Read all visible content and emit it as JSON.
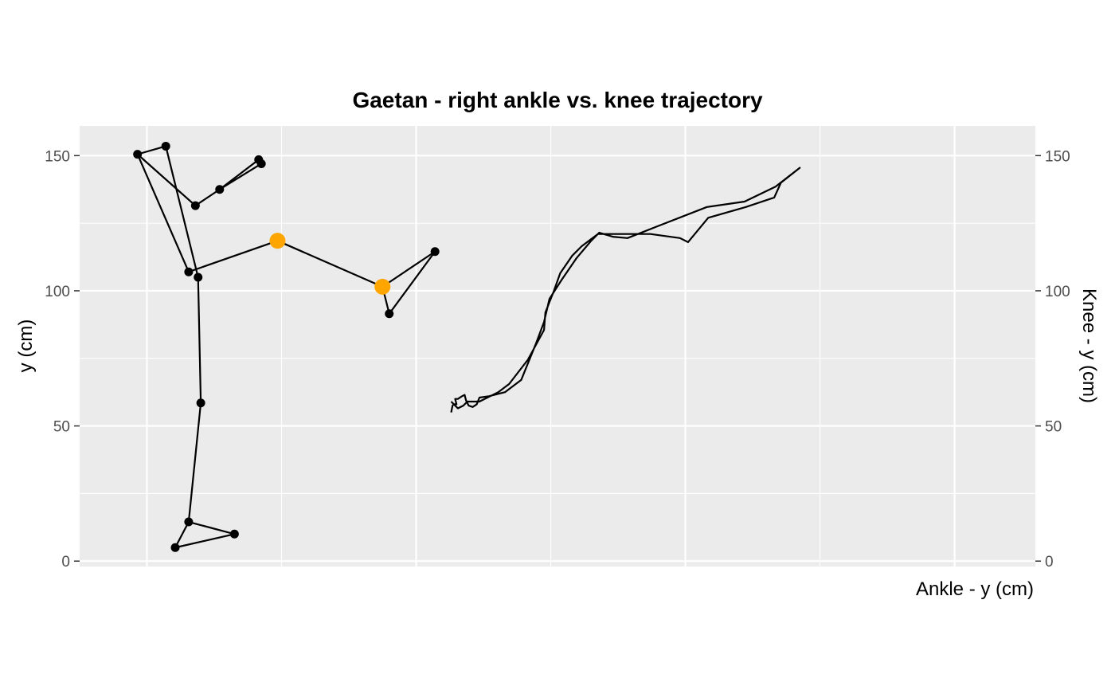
{
  "chart_data": {
    "type": "line",
    "title": "Gaetan - right ankle vs. knee trajectory",
    "ylabel": "y (cm)",
    "xlabel_right": "Ankle - y (cm)",
    "ylabel_right": "Knee - y (cm)",
    "ylim": [
      -2,
      161
    ],
    "xlim": [
      -0.25,
      3.3
    ],
    "yticks": [
      0,
      50,
      100,
      150
    ],
    "yticks_right": [
      0,
      50,
      100,
      150
    ],
    "x_gridlines": [
      0,
      0.5,
      1,
      1.5,
      2,
      2.5,
      3
    ],
    "grid": true,
    "colors": {
      "panel": "#ebebeb",
      "grid": "#ffffff",
      "line": "#000000",
      "highlight": "#ffa500"
    },
    "skeleton": {
      "segments": [
        [
          [
            -0.035,
            150.5
          ],
          [
            0.07,
            153.5
          ]
        ],
        [
          [
            -0.035,
            150.5
          ],
          [
            0.18,
            131.5
          ]
        ],
        [
          [
            -0.035,
            150.5
          ],
          [
            0.155,
            107
          ]
        ],
        [
          [
            0.07,
            153.5
          ],
          [
            0.19,
            105
          ]
        ],
        [
          [
            0.18,
            131.5
          ],
          [
            0.27,
            137.5
          ]
        ],
        [
          [
            0.27,
            137.5
          ],
          [
            0.415,
            148.5
          ]
        ],
        [
          [
            0.27,
            137.5
          ],
          [
            0.425,
            147
          ]
        ],
        [
          [
            0.155,
            107
          ],
          [
            0.485,
            118.5
          ]
        ],
        [
          [
            0.485,
            118.5
          ],
          [
            0.875,
            101.5
          ]
        ],
        [
          [
            0.875,
            101.5
          ],
          [
            1.07,
            114.5
          ]
        ],
        [
          [
            0.875,
            101.5
          ],
          [
            0.9,
            91.5
          ]
        ],
        [
          [
            1.07,
            114.5
          ],
          [
            0.9,
            91.5
          ]
        ],
        [
          [
            0.19,
            105
          ],
          [
            0.2,
            58.5
          ]
        ],
        [
          [
            0.2,
            58.5
          ],
          [
            0.155,
            14.5
          ]
        ],
        [
          [
            0.155,
            14.5
          ],
          [
            0.105,
            5
          ]
        ],
        [
          [
            0.155,
            14.5
          ],
          [
            0.325,
            10
          ]
        ],
        [
          [
            0.105,
            5
          ],
          [
            0.325,
            10
          ]
        ]
      ],
      "joints": [
        [
          -0.035,
          150.5
        ],
        [
          0.07,
          153.5
        ],
        [
          0.18,
          131.5
        ],
        [
          0.27,
          137.5
        ],
        [
          0.415,
          148.5
        ],
        [
          0.425,
          147
        ],
        [
          0.155,
          107
        ],
        [
          0.19,
          105
        ],
        [
          0.2,
          58.5
        ],
        [
          0.155,
          14.5
        ],
        [
          0.105,
          5
        ],
        [
          0.325,
          10
        ],
        [
          1.07,
          114.5
        ],
        [
          0.9,
          91.5
        ]
      ],
      "highlight_joints": [
        [
          0.485,
          118.5
        ],
        [
          0.875,
          101.5
        ]
      ]
    },
    "trajectory": {
      "name": "ankle vs knee",
      "points": [
        [
          1.13,
          55
        ],
        [
          1.135,
          57.5
        ],
        [
          1.14,
          58
        ],
        [
          1.15,
          58
        ],
        [
          1.145,
          60
        ],
        [
          1.155,
          60
        ],
        [
          1.17,
          61
        ],
        [
          1.18,
          61.5
        ],
        [
          1.185,
          59.5
        ],
        [
          1.195,
          57.5
        ],
        [
          1.21,
          57
        ],
        [
          1.225,
          58
        ],
        [
          1.235,
          60.5
        ],
        [
          1.27,
          61
        ],
        [
          1.33,
          62.5
        ],
        [
          1.39,
          67
        ],
        [
          1.445,
          80.5
        ],
        [
          1.475,
          88.5
        ],
        [
          1.495,
          97
        ],
        [
          1.54,
          104
        ],
        [
          1.595,
          112
        ],
        [
          1.65,
          118.5
        ],
        [
          1.68,
          121.5
        ],
        [
          1.73,
          120
        ],
        [
          1.785,
          119.5
        ],
        [
          1.9,
          124
        ],
        [
          2.08,
          131
        ],
        [
          2.22,
          133
        ],
        [
          2.335,
          138.5
        ],
        [
          2.425,
          145.5
        ],
        [
          2.355,
          140
        ],
        [
          2.33,
          134.5
        ],
        [
          2.225,
          131
        ],
        [
          2.085,
          127
        ],
        [
          2.01,
          118
        ],
        [
          1.98,
          119.5
        ],
        [
          1.87,
          121
        ],
        [
          1.675,
          121
        ],
        [
          1.615,
          116.5
        ],
        [
          1.58,
          113
        ],
        [
          1.535,
          106.5
        ],
        [
          1.51,
          99.5
        ],
        [
          1.48,
          92
        ],
        [
          1.475,
          85.5
        ],
        [
          1.415,
          74.5
        ],
        [
          1.345,
          65.5
        ],
        [
          1.305,
          62.5
        ],
        [
          1.235,
          59
        ],
        [
          1.19,
          59
        ],
        [
          1.175,
          57.5
        ],
        [
          1.155,
          56.5
        ],
        [
          1.13,
          59
        ]
      ]
    }
  }
}
